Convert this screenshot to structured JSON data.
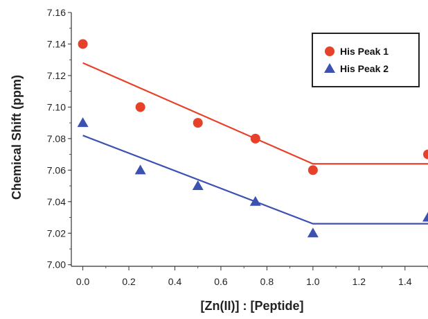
{
  "chart_data": {
    "type": "scatter",
    "title": "",
    "xlabel": "[Zn(II)] : [Peptide]",
    "ylabel": "Chemical Shift (ppm)",
    "xlim": [
      -0.05,
      1.5
    ],
    "ylim": [
      6.999,
      7.16
    ],
    "xticks": [
      "0.0",
      "0.2",
      "0.4",
      "0.6",
      "0.8",
      "1.0",
      "1.2",
      "1.4"
    ],
    "yticks": [
      "7.00",
      "7.02",
      "7.04",
      "7.06",
      "7.08",
      "7.10",
      "7.12",
      "7.14",
      "7.16"
    ],
    "legend_position": "top-right",
    "series": [
      {
        "name": "His Peak 1",
        "marker": "circle",
        "color": "#e8412a",
        "x": [
          0.0,
          0.25,
          0.5,
          0.75,
          1.0,
          1.5
        ],
        "y": [
          7.14,
          7.1,
          7.09,
          7.08,
          7.06,
          7.07
        ],
        "fit_line": {
          "x": [
            0.0,
            1.0,
            1.5
          ],
          "y": [
            7.128,
            7.064,
            7.064
          ]
        }
      },
      {
        "name": "His Peak 2",
        "marker": "triangle",
        "color": "#3d52b0",
        "x": [
          0.0,
          0.25,
          0.5,
          0.75,
          1.0,
          1.5
        ],
        "y": [
          7.09,
          7.06,
          7.05,
          7.04,
          7.02,
          7.03
        ],
        "fit_line": {
          "x": [
            0.0,
            1.0,
            1.5
          ],
          "y": [
            7.082,
            7.026,
            7.026
          ]
        }
      }
    ]
  }
}
